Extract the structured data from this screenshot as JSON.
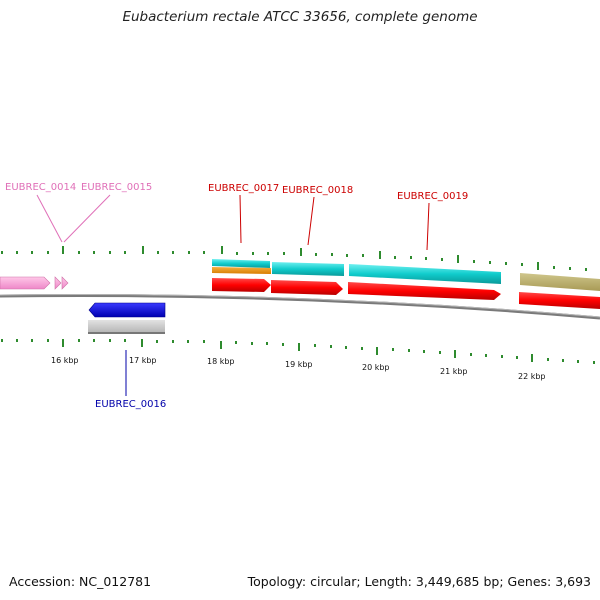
{
  "title": "Eubacterium rectale ATCC 33656, complete genome",
  "accession": "Accession: NC_012781",
  "summary": "Topology: circular; Length: 3,449,685 bp; Genes: 3,693",
  "colors": {
    "tick": "#2e8b2e",
    "label_pink": "#e070b8",
    "label_red": "#cc0000",
    "label_blue": "#0000aa",
    "backbone": "#777777"
  },
  "scale_labels": [
    "16 kbp",
    "17 kbp",
    "18 kbp",
    "19 kbp",
    "20 kbp",
    "21 kbp",
    "22 kbp"
  ],
  "gene_labels": [
    "EUBREC_0014",
    "EUBREC_0015",
    "EUBREC_0016",
    "EUBREC_0017",
    "EUBREC_0018",
    "EUBREC_0019"
  ]
}
